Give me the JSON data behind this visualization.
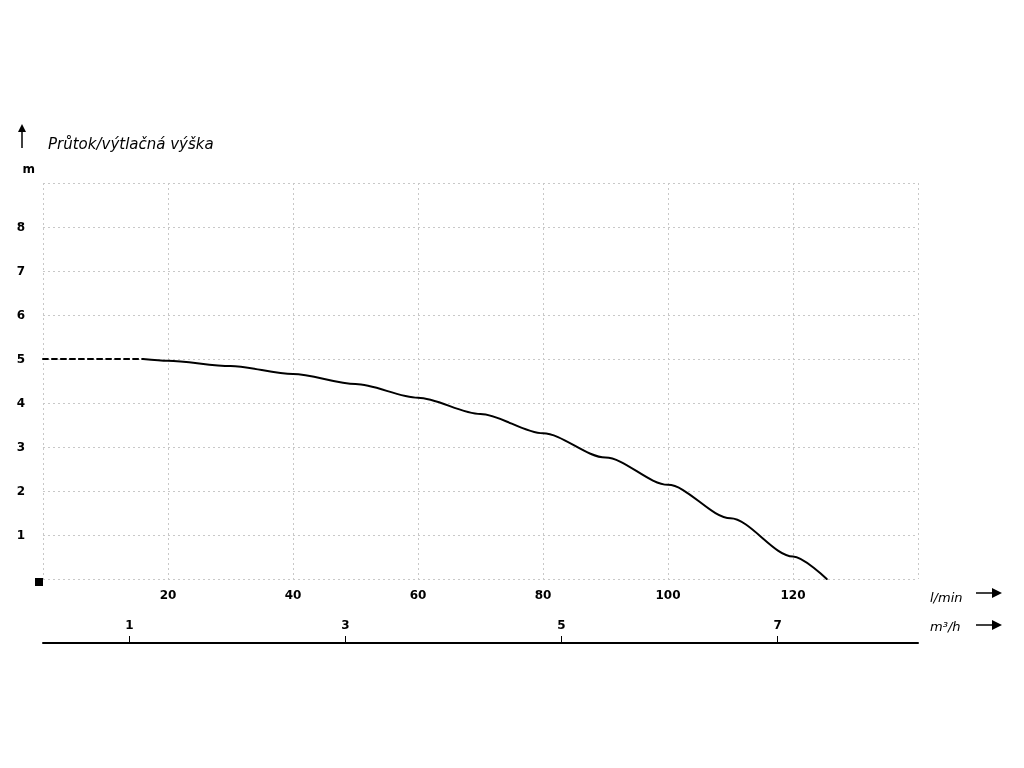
{
  "chart_data": {
    "type": "line",
    "title": "Průtok/výtlačná výška",
    "xlabel": "l/min",
    "ylabel": "m",
    "x2label": "m³/h",
    "xlim": [
      0,
      140
    ],
    "xticks": [
      {
        "value": 0,
        "label": null
      },
      20,
      40,
      60,
      80,
      100,
      120,
      {
        "value": 140,
        "label": null
      }
    ],
    "ylim": [
      0,
      9
    ],
    "yticks": [
      {
        "value": 0,
        "label": null
      },
      1,
      2,
      3,
      4,
      5,
      6,
      7,
      8,
      {
        "value": 9,
        "label": null
      }
    ],
    "x2lim": [
      0.2,
      8.3
    ],
    "x2ticks": [
      1,
      3,
      5,
      7
    ],
    "grid": true,
    "marker": "none",
    "series": [
      {
        "color": "#000000",
        "line_style": "dashed",
        "x": [
          0,
          16
        ],
        "values": [
          5.0,
          5.0
        ]
      },
      {
        "color": "#000000",
        "line_style": "solid",
        "x": [
          16,
          20,
          30,
          40,
          50,
          60,
          70,
          80,
          90,
          100,
          110,
          120,
          125.4
        ],
        "values": [
          5.0,
          4.96,
          4.84,
          4.66,
          4.43,
          4.12,
          3.75,
          3.31,
          2.76,
          2.14,
          1.38,
          0.51,
          0
        ]
      }
    ]
  }
}
